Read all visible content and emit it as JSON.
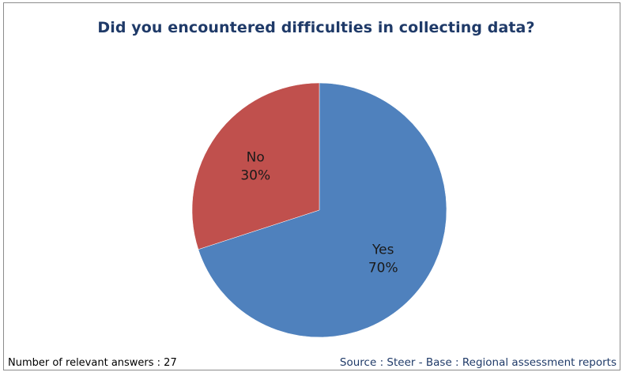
{
  "chart_data": {
    "type": "pie",
    "title": "Did you encountered difficulties in collecting data?",
    "slices": [
      {
        "label": "Yes",
        "value": 70,
        "display": "70%",
        "color": "#4f81bd"
      },
      {
        "label": "No",
        "value": 30,
        "display": "30%",
        "color": "#c0504d"
      }
    ],
    "start_angle_deg": 0,
    "direction": "clockwise"
  },
  "footer": {
    "answers_note": "Number of relevant answers : 27",
    "source_note": "Source : Steer - Base : Regional assessment reports"
  }
}
